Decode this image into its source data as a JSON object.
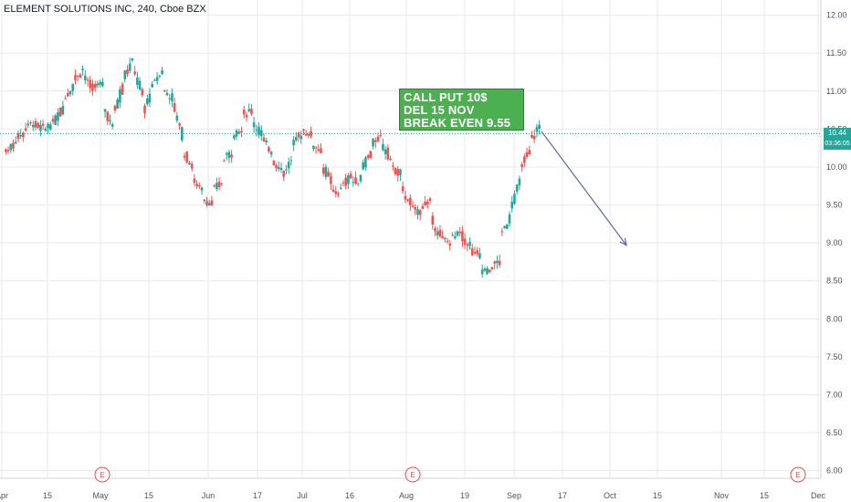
{
  "header": {
    "title": "ELEMENT SOLUTIONS INC, 240, Cboe BZX"
  },
  "note": {
    "lines": [
      "CALL PUT 10$",
      "DEL 15 NOV",
      "BREAK EVEN 9.55"
    ],
    "color": "#4caf50"
  },
  "price_axis": {
    "current_price": "10.44",
    "countdown": "03:36:05",
    "label_color": "#26a69a"
  },
  "colors": {
    "up": "#26a69a",
    "down": "#ef5350",
    "grid": "#e6e9ef",
    "last_price_line": "#26a69a",
    "arrow": "#5b6aa8",
    "earnings": "#e05252"
  },
  "chart_data": {
    "type": "candlestick",
    "title": "ELEMENT SOLUTIONS INC, 240, Cboe BZX",
    "y_axis": {
      "ticks": [
        "12.00",
        "11.50",
        "11.00",
        "10.50",
        "10.00",
        "9.50",
        "9.00",
        "8.50",
        "8.00",
        "7.50",
        "7.00",
        "6.50",
        "6.00"
      ],
      "ylim": [
        5.9,
        12.2
      ]
    },
    "x_axis": {
      "ticks": [
        "Apr",
        "15",
        "May",
        "15",
        "Jun",
        "17",
        "Jul",
        "16",
        "Aug",
        "19",
        "Sep",
        "17",
        "Oct",
        "15",
        "Nov",
        "15",
        "Dec"
      ]
    },
    "earnings_markers": [
      "E",
      "E",
      "E"
    ],
    "last_price": 10.44,
    "price_path": [
      [
        10.2,
        10.3
      ],
      [
        10.35,
        10.45
      ],
      [
        10.5,
        10.6
      ],
      [
        10.55,
        10.5
      ],
      [
        10.5,
        10.6
      ],
      [
        10.6,
        10.8
      ],
      [
        10.9,
        11.1
      ],
      [
        11.15,
        11.3
      ],
      [
        11.2,
        11.0
      ],
      [
        11.1,
        11.05
      ],
      [
        10.8,
        10.5
      ],
      [
        10.7,
        11.1
      ],
      [
        11.2,
        11.4
      ],
      [
        11.3,
        10.9
      ],
      [
        10.7,
        11.1
      ],
      [
        11.1,
        11.3
      ],
      [
        11.0,
        10.9
      ],
      [
        10.8,
        10.4
      ],
      [
        10.2,
        10.0
      ],
      [
        9.8,
        9.7
      ],
      [
        9.6,
        9.5
      ],
      [
        9.7,
        9.8
      ],
      [
        10.1,
        10.2
      ],
      [
        10.4,
        10.5
      ],
      [
        10.7,
        10.75
      ],
      [
        10.6,
        10.4
      ],
      [
        10.35,
        10.2
      ],
      [
        10.1,
        9.95
      ],
      [
        9.9,
        10.1
      ],
      [
        10.3,
        10.45
      ],
      [
        10.5,
        10.4
      ],
      [
        10.3,
        10.2
      ],
      [
        10.0,
        9.8
      ],
      [
        9.65,
        9.7
      ],
      [
        9.75,
        9.9
      ],
      [
        9.8,
        9.85
      ],
      [
        10.0,
        10.2
      ],
      [
        10.3,
        10.4
      ],
      [
        10.3,
        10.1
      ],
      [
        10.0,
        9.9
      ],
      [
        9.7,
        9.5
      ],
      [
        9.45,
        9.4
      ],
      [
        9.5,
        9.55
      ],
      [
        9.3,
        9.1
      ],
      [
        9.05,
        9.0
      ],
      [
        9.05,
        9.15
      ],
      [
        9.1,
        8.95
      ],
      [
        8.9,
        8.8
      ],
      [
        8.65,
        8.6
      ],
      [
        8.7,
        8.75
      ],
      [
        9.1,
        9.35
      ],
      [
        9.5,
        9.8
      ],
      [
        10.0,
        10.2
      ],
      [
        10.35,
        10.55
      ]
    ],
    "projection_end": {
      "x_label": "Oct",
      "price": 8.97
    }
  }
}
